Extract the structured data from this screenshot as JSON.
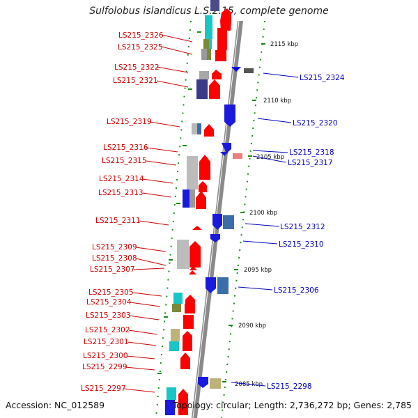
{
  "title": "Sulfolobus islandicus L.S.2.15, complete genome",
  "accession": "Accession: NC_012589",
  "summary": "Topology: circular; Length: 2,736,272 bp; Genes: 2,785",
  "colors": {
    "forward": "#ff0000",
    "reverse": "#0000ff",
    "left_label": "#d10000",
    "right_label": "#0000c0",
    "backbone": "#8a8a8a",
    "ticks": "#1a8a1a"
  },
  "scale_labels": [
    "2115 kbp",
    "2110 kbp",
    "2105 kbp",
    "2100 kbp",
    "2095 kbp",
    "2090 kbp",
    "2085 kbp"
  ],
  "left_genes": [
    "LS215_2326",
    "LS215_2325",
    "LS215_2322",
    "LS215_2321",
    "LS215_2319",
    "LS215_2316",
    "LS215_2315",
    "LS215_2314",
    "LS215_2313",
    "LS215_2311",
    "LS215_2309",
    "LS215_2308",
    "LS215_2307",
    "LS215_2305",
    "LS215_2304",
    "LS215_2303",
    "LS215_2302",
    "LS215_2301",
    "LS215_2300",
    "LS215_2299",
    "LS215_2297"
  ],
  "right_genes": [
    "LS215_2324",
    "LS215_2320",
    "LS215_2318",
    "LS215_2317",
    "LS215_2312",
    "LS215_2310",
    "LS215_2306",
    "LS215_2298"
  ]
}
